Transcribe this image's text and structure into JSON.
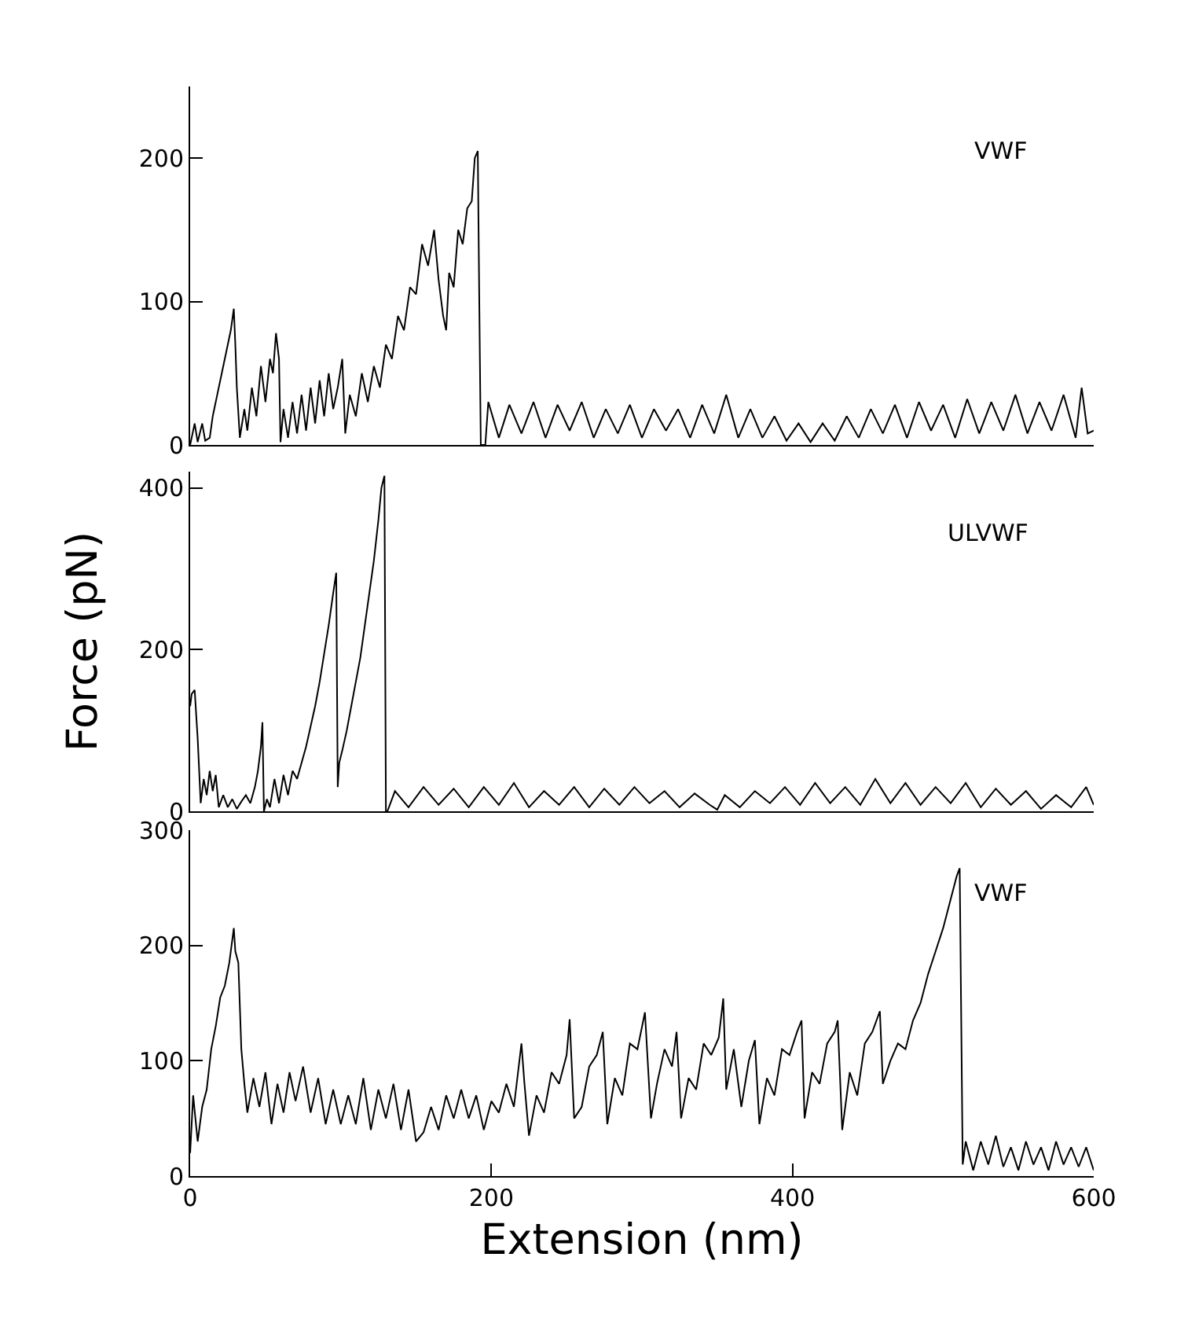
{
  "chart_data": [
    {
      "type": "line",
      "annotations": [
        "VWF"
      ],
      "xlim": [
        0,
        600
      ],
      "ylim": [
        0,
        250
      ],
      "yticks": [
        0,
        100,
        200
      ],
      "tick_labels": "y",
      "x": [
        0,
        3,
        5,
        8,
        10,
        13,
        15,
        18,
        21,
        24,
        27,
        29,
        30,
        31,
        33,
        36,
        38,
        41,
        44,
        47,
        50,
        53,
        55,
        57,
        59,
        60,
        62,
        65,
        68,
        71,
        74,
        77,
        80,
        83,
        86,
        89,
        92,
        95,
        98,
        101,
        103,
        106,
        110,
        114,
        118,
        122,
        126,
        130,
        134,
        138,
        142,
        146,
        150,
        154,
        158,
        162,
        165,
        168,
        170,
        172,
        175,
        178,
        181,
        184,
        187,
        189,
        191,
        192,
        193,
        196,
        198,
        205,
        212,
        220,
        228,
        236,
        244,
        252,
        260,
        268,
        276,
        284,
        292,
        300,
        308,
        316,
        324,
        332,
        340,
        348,
        356,
        364,
        372,
        380,
        388,
        396,
        404,
        412,
        420,
        428,
        436,
        444,
        452,
        460,
        468,
        476,
        484,
        492,
        500,
        508,
        516,
        524,
        532,
        540,
        548,
        556,
        564,
        572,
        580,
        588,
        592,
        596,
        600
      ],
      "series": [
        {
          "color": "#000000",
          "values": [
            0,
            15,
            2,
            15,
            3,
            5,
            20,
            35,
            50,
            65,
            80,
            95,
            70,
            40,
            5,
            25,
            10,
            40,
            20,
            55,
            30,
            60,
            50,
            78,
            60,
            2,
            25,
            5,
            30,
            8,
            35,
            10,
            40,
            15,
            45,
            20,
            50,
            25,
            40,
            60,
            8,
            35,
            20,
            50,
            30,
            55,
            40,
            70,
            60,
            90,
            80,
            110,
            105,
            140,
            125,
            150,
            115,
            90,
            80,
            120,
            110,
            150,
            140,
            165,
            170,
            200,
            205,
            100,
            0,
            0,
            30,
            5,
            28,
            8,
            30,
            5,
            28,
            10,
            30,
            5,
            25,
            8,
            28,
            5,
            25,
            10,
            25,
            5,
            28,
            8,
            35,
            5,
            25,
            5,
            20,
            3,
            15,
            2,
            15,
            3,
            20,
            5,
            25,
            8,
            28,
            5,
            30,
            10,
            28,
            5,
            32,
            8,
            30,
            10,
            35,
            8,
            30,
            10,
            35,
            5,
            40,
            8,
            10
          ]
        }
      ]
    },
    {
      "type": "line",
      "ylabel": "Force (pN)",
      "annotations": [
        "ULVWF"
      ],
      "xlim": [
        0,
        600
      ],
      "ylim": [
        0,
        420
      ],
      "yticks": [
        0,
        200,
        400
      ],
      "tick_labels": "y",
      "x": [
        0,
        1,
        3,
        5,
        7,
        9,
        11,
        13,
        15,
        17,
        19,
        22,
        25,
        28,
        31,
        34,
        37,
        40,
        43,
        45,
        47,
        48,
        49,
        51,
        53,
        56,
        59,
        62,
        65,
        68,
        71,
        74,
        77,
        80,
        83,
        86,
        89,
        92,
        95,
        97,
        98,
        99,
        101,
        104,
        107,
        110,
        113,
        116,
        119,
        122,
        125,
        127,
        129,
        130,
        131,
        136,
        145,
        155,
        165,
        175,
        185,
        195,
        205,
        215,
        225,
        235,
        245,
        255,
        265,
        275,
        285,
        295,
        305,
        315,
        325,
        335,
        345,
        350,
        355,
        365,
        375,
        385,
        395,
        405,
        415,
        425,
        435,
        445,
        455,
        465,
        475,
        485,
        495,
        505,
        515,
        525,
        535,
        545,
        555,
        565,
        575,
        585,
        595,
        600
      ],
      "series": [
        {
          "color": "#000000",
          "values": [
            130,
            145,
            150,
            90,
            10,
            40,
            20,
            50,
            25,
            45,
            5,
            20,
            5,
            15,
            3,
            12,
            20,
            10,
            30,
            50,
            80,
            110,
            0,
            15,
            5,
            40,
            10,
            45,
            20,
            50,
            40,
            60,
            80,
            105,
            130,
            160,
            195,
            230,
            270,
            295,
            30,
            60,
            75,
            100,
            130,
            160,
            190,
            230,
            270,
            310,
            360,
            400,
            415,
            0,
            0,
            25,
            5,
            30,
            8,
            28,
            5,
            30,
            8,
            35,
            5,
            25,
            8,
            30,
            5,
            28,
            8,
            30,
            10,
            25,
            5,
            22,
            8,
            2,
            20,
            5,
            25,
            10,
            30,
            8,
            35,
            10,
            30,
            8,
            40,
            10,
            35,
            8,
            30,
            10,
            35,
            5,
            28,
            8,
            25,
            3,
            20,
            5,
            30,
            8
          ]
        }
      ]
    },
    {
      "type": "line",
      "xlabel": "Extension (nm)",
      "annotations": [
        "VWF"
      ],
      "xlim": [
        0,
        600
      ],
      "ylim": [
        0,
        300
      ],
      "xticks": [
        0,
        200,
        400,
        600
      ],
      "yticks": [
        0,
        100,
        200,
        300
      ],
      "x": [
        0,
        2,
        5,
        8,
        11,
        14,
        17,
        20,
        23,
        26,
        29,
        30,
        32,
        34,
        36,
        38,
        42,
        46,
        50,
        54,
        58,
        62,
        66,
        70,
        75,
        80,
        85,
        90,
        95,
        100,
        105,
        110,
        115,
        120,
        125,
        130,
        135,
        140,
        145,
        150,
        155,
        160,
        165,
        170,
        175,
        180,
        185,
        190,
        195,
        200,
        205,
        210,
        215,
        220,
        222,
        225,
        230,
        235,
        240,
        245,
        250,
        252,
        255,
        260,
        265,
        270,
        274,
        277,
        282,
        287,
        292,
        297,
        302,
        306,
        310,
        315,
        320,
        323,
        326,
        331,
        336,
        341,
        346,
        351,
        354,
        356,
        361,
        366,
        371,
        375,
        378,
        383,
        388,
        393,
        398,
        403,
        406,
        408,
        413,
        418,
        423,
        428,
        430,
        433,
        438,
        443,
        448,
        453,
        458,
        460,
        465,
        470,
        475,
        480,
        485,
        490,
        495,
        500,
        505,
        509,
        511,
        513,
        515,
        520,
        525,
        530,
        535,
        540,
        545,
        550,
        555,
        560,
        565,
        570,
        575,
        580,
        585,
        590,
        595,
        600
      ],
      "series": [
        {
          "color": "#000000",
          "values": [
            20,
            70,
            30,
            60,
            75,
            110,
            130,
            155,
            165,
            185,
            215,
            195,
            185,
            110,
            80,
            55,
            85,
            60,
            90,
            45,
            80,
            55,
            90,
            65,
            95,
            55,
            85,
            45,
            75,
            45,
            70,
            45,
            85,
            40,
            75,
            50,
            80,
            40,
            75,
            30,
            38,
            60,
            40,
            70,
            50,
            75,
            50,
            70,
            40,
            65,
            55,
            80,
            60,
            115,
            80,
            35,
            70,
            55,
            90,
            80,
            105,
            136,
            50,
            60,
            95,
            105,
            125,
            45,
            85,
            70,
            115,
            110,
            142,
            50,
            80,
            110,
            95,
            125,
            50,
            85,
            75,
            115,
            105,
            120,
            154,
            75,
            110,
            60,
            100,
            118,
            45,
            85,
            70,
            110,
            105,
            125,
            135,
            50,
            90,
            80,
            115,
            125,
            135,
            40,
            90,
            70,
            115,
            125,
            143,
            80,
            100,
            115,
            110,
            135,
            150,
            175,
            195,
            215,
            240,
            260,
            267,
            10,
            30,
            5,
            30,
            10,
            35,
            8,
            25,
            5,
            30,
            10,
            25,
            5,
            30,
            10,
            25,
            8,
            25,
            5
          ]
        }
      ]
    }
  ]
}
